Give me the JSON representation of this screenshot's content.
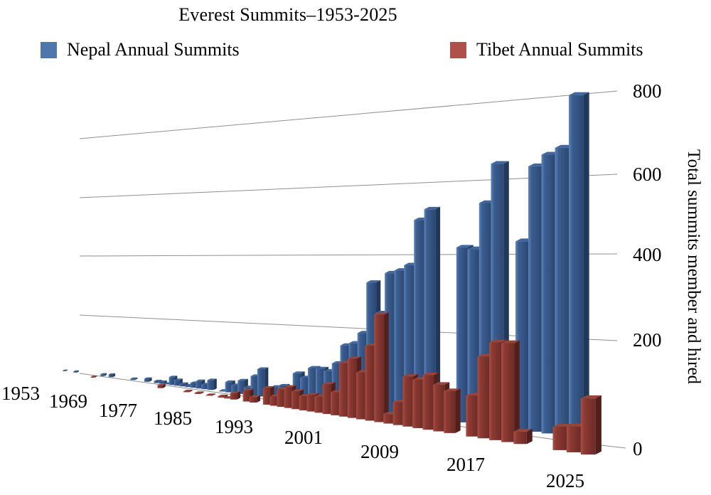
{
  "title": "Everest Summits–1953-2025",
  "legend": [
    {
      "label": "Nepal Annual Summits",
      "color": "#4f77ad"
    },
    {
      "label": "Tibet Annual Summits",
      "color": "#b0504a"
    }
  ],
  "chart_data": {
    "type": "bar",
    "projection": "3d-perspective-columns",
    "title": "Everest Summits–1953-2025",
    "ylabel": "Total summits member and hired",
    "xlabel": "",
    "ylim": [
      0,
      800
    ],
    "yticks": [
      0,
      200,
      400,
      600,
      800
    ],
    "grid": true,
    "legend_position": "top",
    "xtick_labels_shown": [
      "1953",
      "1969",
      "1977",
      "1985",
      "1993",
      "2001",
      "2009",
      "2017",
      "2025"
    ],
    "categories": [
      1953,
      1954,
      1955,
      1956,
      1957,
      1958,
      1959,
      1960,
      1961,
      1962,
      1963,
      1964,
      1965,
      1966,
      1967,
      1968,
      1969,
      1970,
      1971,
      1972,
      1973,
      1974,
      1975,
      1976,
      1977,
      1978,
      1979,
      1980,
      1981,
      1982,
      1983,
      1984,
      1985,
      1986,
      1987,
      1988,
      1989,
      1990,
      1991,
      1992,
      1993,
      1994,
      1995,
      1996,
      1997,
      1998,
      1999,
      2000,
      2001,
      2002,
      2003,
      2004,
      2005,
      2006,
      2007,
      2008,
      2009,
      2010,
      2011,
      2012,
      2013,
      2014,
      2015,
      2016,
      2017,
      2018,
      2019,
      2020,
      2021,
      2022,
      2023,
      2024,
      2025
    ],
    "series": [
      {
        "name": "Nepal Annual Summits",
        "color": "#4f77ad",
        "values": [
          2,
          0,
          0,
          4,
          0,
          0,
          0,
          0,
          0,
          0,
          6,
          0,
          9,
          0,
          0,
          0,
          0,
          4,
          0,
          0,
          10,
          0,
          6,
          6,
          2,
          25,
          18,
          8,
          5,
          15,
          23,
          15,
          30,
          0,
          2,
          31,
          24,
          40,
          22,
          58,
          81,
          24,
          33,
          39,
          35,
          80,
          70,
          100,
          100,
          96,
          120,
          172,
          180,
          210,
          350,
          268,
          377,
          385,
          400,
          520,
          548,
          0,
          0,
          449,
          445,
          562,
          660,
          0,
          466,
          650,
          677,
          692,
          816
        ]
      },
      {
        "name": "Tibet Annual Summits",
        "color": "#b0504a",
        "values": [
          0,
          0,
          0,
          0,
          0,
          0,
          0,
          3,
          0,
          0,
          0,
          0,
          0,
          0,
          0,
          0,
          0,
          0,
          0,
          0,
          0,
          0,
          9,
          0,
          0,
          0,
          0,
          3,
          0,
          3,
          0,
          2,
          0,
          4,
          2,
          19,
          0,
          32,
          16,
          0,
          48,
          27,
          50,
          59,
          50,
          40,
          46,
          45,
          82,
          63,
          145,
          160,
          126,
          200,
          285,
          25,
          60,
          130,
          125,
          140,
          119,
          106,
          0,
          102,
          202,
          240,
          241,
          30,
          0,
          0,
          55,
          60,
          130
        ]
      }
    ]
  }
}
